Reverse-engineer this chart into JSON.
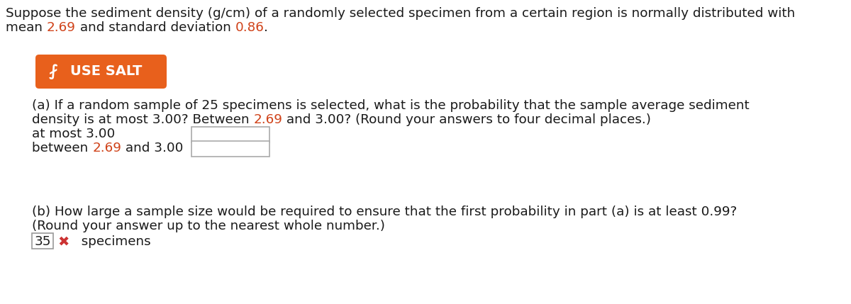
{
  "bg_color": "#ffffff",
  "text_color": "#1a1a1a",
  "highlight_color": "#d0431a",
  "button_bg": "#e8601c",
  "button_text_color": "#ffffff",
  "line1": "Suppose the sediment density (g/cm) of a randomly selected specimen from a certain region is normally distributed with",
  "line2_pre": "mean ",
  "line2_mean": "2.69",
  "line2_mid": " and standard deviation ",
  "line2_std": "0.86",
  "line2_post": ".",
  "button_label": "USE SALT",
  "part_a_l1": "(a) If a random sample of 25 specimens is selected, what is the probability that the sample average sediment",
  "part_a_l2_pre": "density is at most 3.00? Between ",
  "part_a_l2_hl": "2.69",
  "part_a_l2_post": " and 3.00? (Round your answers to four decimal places.)",
  "label1": "at most 3.00",
  "label2_pre": "between ",
  "label2_hl": "2.69",
  "label2_post": " and 3.00",
  "part_b_l1": "(b) How large a sample size would be required to ensure that the first probability in part (a) is at least 0.99?",
  "part_b_l2": "(Round your answer up to the nearest whole number.)",
  "answer": "35",
  "answer_suffix": "  specimens",
  "font_size": 13.2,
  "box_edge_color": "#aaaaaa",
  "answer_box_edge": "#999999",
  "x_mark_color": "#cc3333"
}
